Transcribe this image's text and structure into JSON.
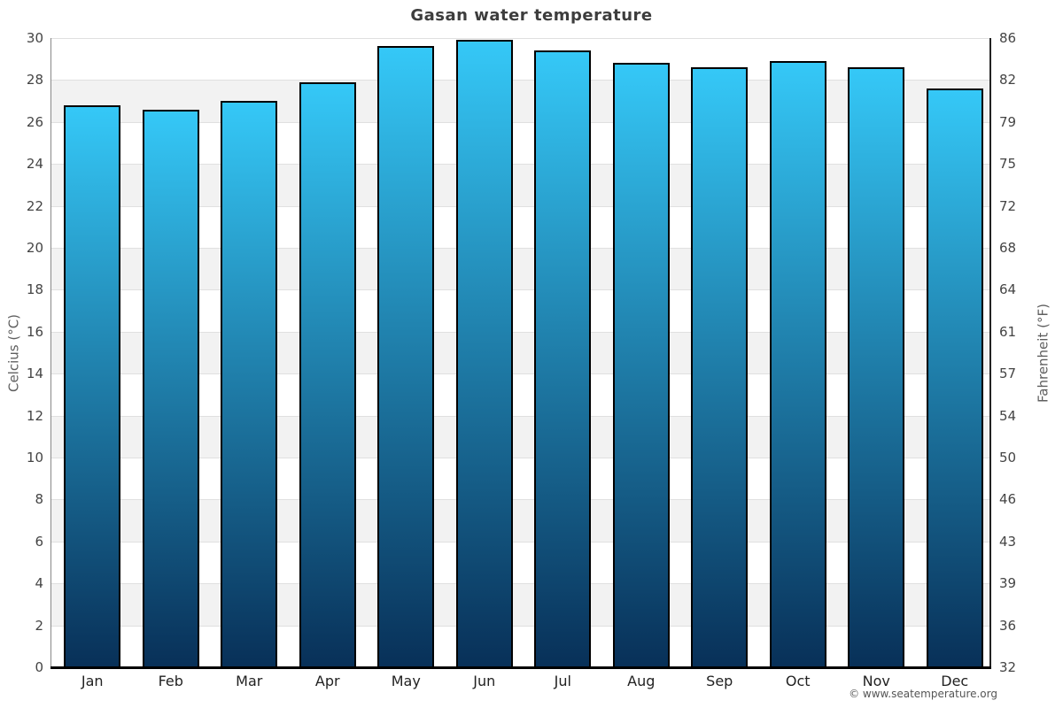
{
  "footer": "© www.seatemperature.org",
  "chart_data": {
    "type": "bar",
    "title": "Gasan water temperature",
    "categories": [
      "Jan",
      "Feb",
      "Mar",
      "Apr",
      "May",
      "Jun",
      "Jul",
      "Aug",
      "Sep",
      "Oct",
      "Nov",
      "Dec"
    ],
    "values": [
      26.8,
      26.6,
      27.0,
      27.9,
      29.6,
      29.9,
      29.4,
      28.8,
      28.6,
      28.9,
      28.6,
      27.6
    ],
    "unit": "°C",
    "ylabel_left": "Celcius (°C)",
    "ylabel_right": "Fahrenheit (°F)",
    "ylim": [
      0,
      30
    ],
    "yticks_celsius": [
      0,
      2,
      4,
      6,
      8,
      10,
      12,
      14,
      16,
      18,
      20,
      22,
      24,
      26,
      28,
      30
    ],
    "yticks_fahrenheit": [
      32,
      36,
      39,
      43,
      46,
      50,
      54,
      57,
      61,
      64,
      68,
      72,
      75,
      79,
      82,
      86
    ],
    "grid": "horizontal gridlines every 2°C with alternating shaded bands",
    "legend": "none",
    "colors": {
      "bar_top": "#35c8f7",
      "bar_bottom": "#083058",
      "bar_border": "#000000",
      "band_light": "#ffffff",
      "band_shade": "#f2f2f2",
      "grid_line": "#e0e0e0",
      "spine_left": "#888888",
      "spine_right": "#222222",
      "baseline": "#000000",
      "title_color": "#3d3d3d",
      "tick_color": "#444444",
      "axis_label_color": "#5f5f5f",
      "month_color": "#222222",
      "footer_color": "#555555"
    }
  }
}
